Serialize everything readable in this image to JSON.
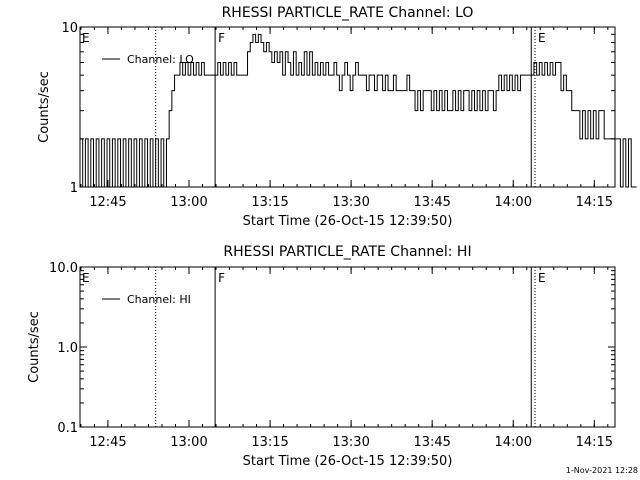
{
  "footer": {
    "timestamp": "1-Nov-2021 12:28"
  },
  "chart_data": [
    {
      "type": "line",
      "title": "RHESSI PARTICLE_RATE Channel: LO",
      "xlabel": "Start Time (26-Oct-15 12:39:50)",
      "ylabel": "Counts/sec",
      "y_scale": "log",
      "xlim_minutes": [
        0,
        99
      ],
      "ylim": [
        1,
        10
      ],
      "x_tick_minutes": [
        5.17,
        20.17,
        35.17,
        50.17,
        65.17,
        80.17,
        95.17
      ],
      "x_tick_labels": [
        "12:45",
        "13:00",
        "13:15",
        "13:30",
        "13:45",
        "14:00",
        "14:15"
      ],
      "y_tick_values": [
        1,
        10
      ],
      "y_tick_labels": [
        "1",
        "10"
      ],
      "legend": {
        "entries": [
          "Channel: LO"
        ],
        "position": "top-left"
      },
      "series": [
        {
          "name": "Channel: LO",
          "step_minutes": 0.5,
          "values": [
            2,
            1,
            2,
            1,
            2,
            1,
            2,
            1,
            2,
            1,
            2,
            1,
            2,
            1,
            2,
            1,
            2,
            1,
            2,
            1,
            2,
            1,
            2,
            1,
            2,
            1,
            2,
            1,
            2,
            1,
            2,
            1,
            2,
            3,
            4,
            5,
            5,
            6,
            5,
            6,
            5,
            6,
            5,
            6,
            5,
            6,
            5,
            5,
            5,
            5,
            5,
            6,
            5,
            6,
            5,
            6,
            5,
            6,
            5,
            5,
            5,
            5,
            7,
            8,
            9,
            8,
            9,
            8,
            7,
            8,
            7,
            6,
            7,
            6,
            7,
            5,
            7,
            6,
            5,
            7,
            5,
            6,
            5,
            7,
            5,
            7,
            5,
            6,
            5,
            6,
            5,
            6,
            5,
            5,
            6,
            5,
            4,
            5,
            6,
            5,
            4,
            5,
            6,
            5,
            5,
            5,
            4,
            5,
            5,
            4,
            5,
            5,
            4,
            5,
            4,
            4,
            5,
            4,
            4,
            4,
            4,
            5,
            4,
            4,
            3,
            4,
            3,
            4,
            4,
            4,
            3,
            4,
            3,
            4,
            3,
            4,
            3,
            3,
            4,
            3,
            4,
            3,
            4,
            4,
            3,
            4,
            3,
            4,
            3,
            4,
            3,
            4,
            4,
            3,
            4,
            5,
            4,
            5,
            4,
            5,
            4,
            5,
            4,
            5,
            5,
            5,
            5,
            5,
            6,
            5,
            6,
            5,
            6,
            5,
            6,
            5,
            6,
            6,
            4,
            5,
            4,
            4,
            3,
            3,
            3,
            2,
            3,
            2,
            3,
            2,
            3,
            2,
            3,
            3,
            2,
            2,
            2,
            2,
            2,
            2,
            1,
            2,
            1,
            2,
            1,
            1
          ]
        }
      ],
      "vertical_markers": [
        {
          "minute": 14.0,
          "style": "dotted"
        },
        {
          "minute": 25.0,
          "style": "solid",
          "label": "F"
        },
        {
          "minute": 83.5,
          "style": "solid"
        },
        {
          "minute": 84.2,
          "style": "dotted",
          "label": "E"
        },
        {
          "minute": 100.0,
          "style": "dotted"
        }
      ],
      "corner_labels": [
        "E"
      ]
    },
    {
      "type": "line",
      "title": "RHESSI PARTICLE_RATE Channel: HI",
      "xlabel": "Start Time (26-Oct-15 12:39:50)",
      "ylabel": "Counts/sec",
      "y_scale": "log",
      "xlim_minutes": [
        0,
        99
      ],
      "ylim": [
        0.1,
        10
      ],
      "x_tick_minutes": [
        5.17,
        20.17,
        35.17,
        50.17,
        65.17,
        80.17,
        95.17
      ],
      "x_tick_labels": [
        "12:45",
        "13:00",
        "13:15",
        "13:30",
        "13:45",
        "14:00",
        "14:15"
      ],
      "y_tick_values": [
        0.1,
        1,
        10
      ],
      "y_tick_labels": [
        "0.1",
        "1.0",
        "10.0"
      ],
      "legend": {
        "entries": [
          "Channel: HI"
        ],
        "position": "top-left"
      },
      "series": [
        {
          "name": "Channel: HI",
          "step_minutes": 0.5,
          "values": []
        }
      ],
      "vertical_markers": [
        {
          "minute": 14.0,
          "style": "dotted"
        },
        {
          "minute": 25.0,
          "style": "solid",
          "label": "F"
        },
        {
          "minute": 83.5,
          "style": "solid"
        },
        {
          "minute": 84.2,
          "style": "dotted",
          "label": "E"
        },
        {
          "minute": 100.0,
          "style": "dotted"
        }
      ],
      "corner_labels": [
        "E"
      ]
    }
  ]
}
